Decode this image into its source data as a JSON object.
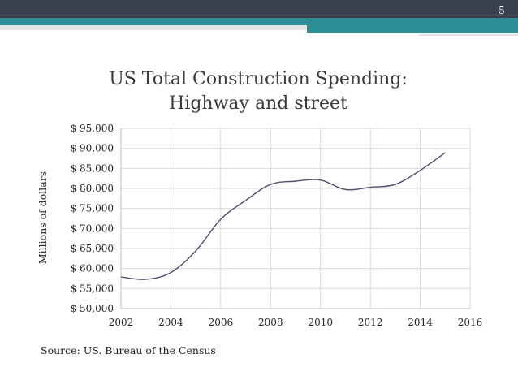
{
  "slide": {
    "page_number": "5",
    "source_text": "Source: US. Bureau of the Census"
  },
  "colors": {
    "header_dark": "#3a4250",
    "header_teal": "#2a8f94",
    "line": "#4b4f73",
    "grid": "#d9d9d9",
    "axis": "#bfbfbf"
  },
  "chart_data": {
    "type": "line",
    "title_lines": [
      "US Total Construction Spending:",
      "Highway and street"
    ],
    "xlabel": "",
    "ylabel": "Millions of dollars",
    "xlim": [
      2002,
      2016
    ],
    "ylim": [
      50000,
      95000
    ],
    "x_ticks": [
      2002,
      2004,
      2006,
      2008,
      2010,
      2012,
      2014,
      2016
    ],
    "y_ticks": [
      50000,
      55000,
      60000,
      65000,
      70000,
      75000,
      80000,
      85000,
      90000,
      95000
    ],
    "y_tick_labels": [
      "$ 50,000",
      "$ 55,000",
      "$ 60,000",
      "$ 65,000",
      "$ 70,000",
      "$ 75,000",
      "$ 80,000",
      "$ 85,000",
      "$ 90,000",
      "$ 95,000"
    ],
    "grid": true,
    "series": [
      {
        "name": "Highway and street",
        "x": [
          2002,
          2003,
          2004,
          2005,
          2006,
          2007,
          2008,
          2009,
          2010,
          2011,
          2012,
          2013,
          2014,
          2015
        ],
        "y": [
          57900,
          57300,
          59000,
          64400,
          72300,
          77000,
          81000,
          81800,
          82100,
          79700,
          80300,
          81000,
          84500,
          88900
        ]
      }
    ]
  }
}
